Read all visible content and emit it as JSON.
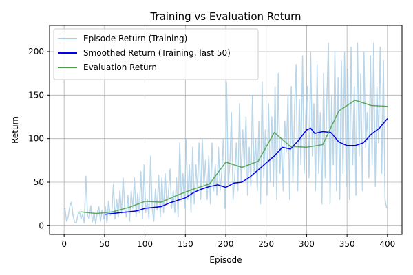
{
  "chart_data": {
    "type": "line",
    "title": "Training vs Evaluation Return",
    "xlabel": "Episode",
    "ylabel": "Return",
    "xlim": [
      -18,
      418
    ],
    "ylim": [
      -10,
      230
    ],
    "xticks": [
      0,
      50,
      100,
      150,
      200,
      250,
      300,
      350,
      400
    ],
    "yticks": [
      0,
      50,
      100,
      150,
      200
    ],
    "grid": true,
    "legend_position": "top-left",
    "series": [
      {
        "name": "Episode Return (Training)",
        "color": "#a9cce3",
        "values": [
          [
            1,
            20
          ],
          [
            3,
            5
          ],
          [
            5,
            10
          ],
          [
            7,
            22
          ],
          [
            9,
            27
          ],
          [
            11,
            12
          ],
          [
            13,
            4
          ],
          [
            15,
            3
          ],
          [
            17,
            12
          ],
          [
            19,
            16
          ],
          [
            21,
            8
          ],
          [
            23,
            13
          ],
          [
            25,
            3
          ],
          [
            27,
            57
          ],
          [
            29,
            12
          ],
          [
            31,
            8
          ],
          [
            33,
            23
          ],
          [
            35,
            4
          ],
          [
            37,
            15
          ],
          [
            39,
            2
          ],
          [
            41,
            15
          ],
          [
            43,
            22
          ],
          [
            45,
            5
          ],
          [
            47,
            18
          ],
          [
            49,
            8
          ],
          [
            51,
            22
          ],
          [
            53,
            3
          ],
          [
            55,
            28
          ],
          [
            57,
            12
          ],
          [
            59,
            15
          ],
          [
            61,
            48
          ],
          [
            63,
            8
          ],
          [
            65,
            30
          ],
          [
            67,
            10
          ],
          [
            69,
            40
          ],
          [
            71,
            14
          ],
          [
            73,
            55
          ],
          [
            75,
            20
          ],
          [
            77,
            10
          ],
          [
            79,
            35
          ],
          [
            81,
            5
          ],
          [
            83,
            40
          ],
          [
            85,
            20
          ],
          [
            87,
            55
          ],
          [
            89,
            10
          ],
          [
            91,
            37
          ],
          [
            93,
            15
          ],
          [
            95,
            62
          ],
          [
            97,
            8
          ],
          [
            99,
            70
          ],
          [
            101,
            15
          ],
          [
            103,
            30
          ],
          [
            105,
            8
          ],
          [
            107,
            80
          ],
          [
            109,
            20
          ],
          [
            111,
            5
          ],
          [
            113,
            42
          ],
          [
            115,
            18
          ],
          [
            117,
            58
          ],
          [
            119,
            10
          ],
          [
            121,
            55
          ],
          [
            123,
            15
          ],
          [
            125,
            60
          ],
          [
            127,
            25
          ],
          [
            129,
            35
          ],
          [
            131,
            65
          ],
          [
            133,
            20
          ],
          [
            135,
            40
          ],
          [
            137,
            15
          ],
          [
            139,
            55
          ],
          [
            141,
            10
          ],
          [
            143,
            95
          ],
          [
            145,
            30
          ],
          [
            147,
            60
          ],
          [
            149,
            20
          ],
          [
            151,
            100
          ],
          [
            153,
            30
          ],
          [
            155,
            70
          ],
          [
            157,
            15
          ],
          [
            159,
            90
          ],
          [
            161,
            25
          ],
          [
            163,
            70
          ],
          [
            165,
            40
          ],
          [
            167,
            95
          ],
          [
            169,
            30
          ],
          [
            171,
            100
          ],
          [
            173,
            45
          ],
          [
            175,
            75
          ],
          [
            177,
            30
          ],
          [
            179,
            80
          ],
          [
            181,
            25
          ],
          [
            183,
            95
          ],
          [
            185,
            40
          ],
          [
            187,
            70
          ],
          [
            189,
            35
          ],
          [
            191,
            90
          ],
          [
            193,
            40
          ],
          [
            195,
            60
          ],
          [
            197,
            100
          ],
          [
            199,
            20
          ],
          [
            201,
            165
          ],
          [
            203,
            45
          ],
          [
            205,
            70
          ],
          [
            207,
            130
          ],
          [
            209,
            30
          ],
          [
            211,
            55
          ],
          [
            213,
            95
          ],
          [
            215,
            40
          ],
          [
            217,
            140
          ],
          [
            219,
            50
          ],
          [
            221,
            110
          ],
          [
            223,
            65
          ],
          [
            225,
            125
          ],
          [
            227,
            35
          ],
          [
            229,
            90
          ],
          [
            231,
            45
          ],
          [
            233,
            150
          ],
          [
            235,
            60
          ],
          [
            237,
            100
          ],
          [
            239,
            40
          ],
          [
            241,
            120
          ],
          [
            243,
            25
          ],
          [
            245,
            165
          ],
          [
            247,
            55
          ],
          [
            249,
            110
          ],
          [
            251,
            35
          ],
          [
            253,
            140
          ],
          [
            255,
            50
          ],
          [
            257,
            125
          ],
          [
            259,
            45
          ],
          [
            261,
            160
          ],
          [
            263,
            30
          ],
          [
            265,
            175
          ],
          [
            267,
            60
          ],
          [
            269,
            100
          ],
          [
            271,
            40
          ],
          [
            273,
            120
          ],
          [
            275,
            85
          ],
          [
            277,
            150
          ],
          [
            279,
            30
          ],
          [
            281,
            160
          ],
          [
            283,
            50
          ],
          [
            285,
            130
          ],
          [
            287,
            185
          ],
          [
            289,
            40
          ],
          [
            291,
            145
          ],
          [
            293,
            70
          ],
          [
            295,
            195
          ],
          [
            297,
            60
          ],
          [
            299,
            130
          ],
          [
            301,
            160
          ],
          [
            303,
            55
          ],
          [
            305,
            200
          ],
          [
            307,
            80
          ],
          [
            309,
            140
          ],
          [
            311,
            40
          ],
          [
            313,
            185
          ],
          [
            315,
            60
          ],
          [
            317,
            130
          ],
          [
            319,
            25
          ],
          [
            321,
            175
          ],
          [
            323,
            55
          ],
          [
            325,
            145
          ],
          [
            327,
            210
          ],
          [
            329,
            25
          ],
          [
            331,
            150
          ],
          [
            333,
            70
          ],
          [
            335,
            200
          ],
          [
            337,
            40
          ],
          [
            339,
            170
          ],
          [
            341,
            30
          ],
          [
            343,
            190
          ],
          [
            345,
            60
          ],
          [
            347,
            200
          ],
          [
            349,
            45
          ],
          [
            351,
            180
          ],
          [
            353,
            30
          ],
          [
            355,
            205
          ],
          [
            357,
            70
          ],
          [
            359,
            160
          ],
          [
            361,
            35
          ],
          [
            363,
            210
          ],
          [
            365,
            80
          ],
          [
            367,
            175
          ],
          [
            369,
            40
          ],
          [
            371,
            200
          ],
          [
            373,
            90
          ],
          [
            375,
            130
          ],
          [
            377,
            55
          ],
          [
            379,
            195
          ],
          [
            381,
            70
          ],
          [
            383,
            210
          ],
          [
            385,
            45
          ],
          [
            387,
            160
          ],
          [
            389,
            95
          ],
          [
            391,
            205
          ],
          [
            393,
            60
          ],
          [
            395,
            190
          ],
          [
            397,
            30
          ],
          [
            399,
            20
          ]
        ]
      },
      {
        "name": "Smoothed Return (Training, last 50)",
        "color": "#0000ee",
        "values": [
          [
            50,
            13
          ],
          [
            60,
            14
          ],
          [
            70,
            15
          ],
          [
            80,
            16
          ],
          [
            90,
            17
          ],
          [
            100,
            20
          ],
          [
            110,
            21
          ],
          [
            120,
            22
          ],
          [
            130,
            26
          ],
          [
            140,
            29
          ],
          [
            150,
            32
          ],
          [
            160,
            38
          ],
          [
            170,
            42
          ],
          [
            180,
            45
          ],
          [
            190,
            47
          ],
          [
            200,
            44
          ],
          [
            210,
            49
          ],
          [
            220,
            50
          ],
          [
            230,
            56
          ],
          [
            240,
            64
          ],
          [
            250,
            72
          ],
          [
            260,
            80
          ],
          [
            270,
            90
          ],
          [
            280,
            88
          ],
          [
            290,
            98
          ],
          [
            300,
            110
          ],
          [
            305,
            112
          ],
          [
            310,
            106
          ],
          [
            320,
            108
          ],
          [
            330,
            107
          ],
          [
            340,
            96
          ],
          [
            350,
            92
          ],
          [
            360,
            92
          ],
          [
            370,
            95
          ],
          [
            380,
            105
          ],
          [
            390,
            112
          ],
          [
            400,
            123
          ]
        ]
      },
      {
        "name": "Evaluation Return",
        "color": "#4aa34a",
        "values": [
          [
            20,
            16
          ],
          [
            40,
            14
          ],
          [
            60,
            16
          ],
          [
            80,
            21
          ],
          [
            100,
            28
          ],
          [
            120,
            27
          ],
          [
            140,
            35
          ],
          [
            160,
            42
          ],
          [
            180,
            48
          ],
          [
            200,
            73
          ],
          [
            220,
            67
          ],
          [
            240,
            74
          ],
          [
            260,
            107
          ],
          [
            280,
            91
          ],
          [
            300,
            90
          ],
          [
            320,
            93
          ],
          [
            340,
            132
          ],
          [
            360,
            144
          ],
          [
            380,
            138
          ],
          [
            400,
            137
          ]
        ]
      }
    ]
  }
}
